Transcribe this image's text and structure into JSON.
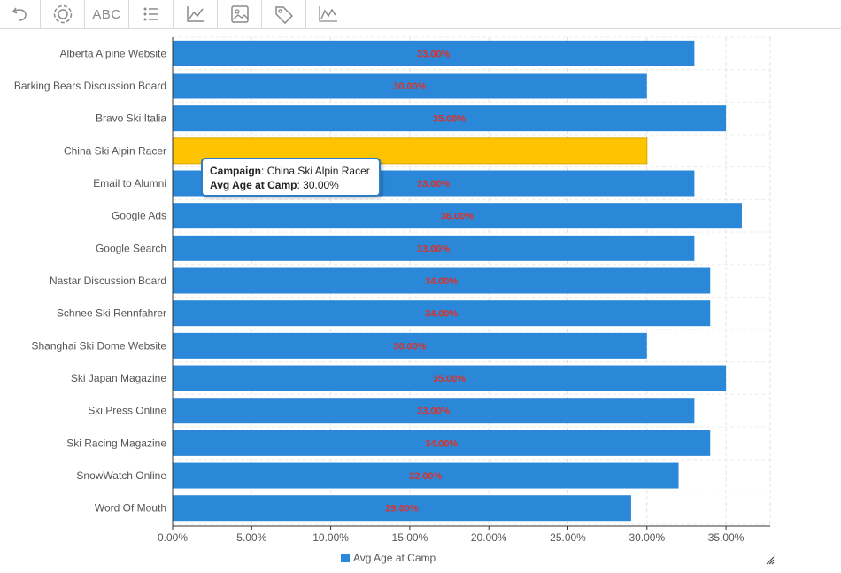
{
  "toolbar": {
    "items": [
      {
        "name": "undo-icon"
      },
      {
        "name": "settings-icon"
      },
      {
        "name": "text-label-icon",
        "label": "ABC"
      },
      {
        "name": "list-icon"
      },
      {
        "name": "axis-icon"
      },
      {
        "name": "image-icon"
      },
      {
        "name": "tag-icon"
      },
      {
        "name": "trend-line-icon"
      }
    ]
  },
  "chart_data": {
    "type": "bar",
    "orientation": "horizontal",
    "categories": [
      "Alberta Alpine Website",
      "Barking Bears Discussion Board",
      "Bravo Ski Italia",
      "China Ski Alpin Racer",
      "Email to Alumni",
      "Google Ads",
      "Google Search",
      "Nastar Discussion Board",
      "Schnee Ski Rennfahrer",
      "Shanghai Ski Dome Website",
      "Ski Japan Magazine",
      "Ski Press Online",
      "Ski Racing Magazine",
      "SnowWatch Online",
      "Word Of Mouth"
    ],
    "series": [
      {
        "name": "Avg Age at Camp",
        "values": [
          33,
          30,
          35,
          30,
          33,
          36,
          33,
          34,
          34,
          30,
          35,
          33,
          34,
          32,
          29
        ],
        "data_labels": [
          "33.00%",
          "30.00%",
          "35.00%",
          "",
          "33.00%",
          "36.00%",
          "33.00%",
          "34.00%",
          "34.00%",
          "30.00%",
          "35.00%",
          "33.00%",
          "34.00%",
          "32.00%",
          "29.00%"
        ]
      }
    ],
    "xlim": [
      0,
      38
    ],
    "x_ticks": [
      0,
      5,
      10,
      15,
      20,
      25,
      30,
      35
    ],
    "x_tick_labels": [
      "0.00%",
      "5.00%",
      "10.00%",
      "15.00%",
      "20.00%",
      "25.00%",
      "30.00%",
      "35.00%"
    ],
    "grid": true,
    "legend_position": "bottom",
    "highlighted_category": "China Ski Alpin Racer",
    "colors": {
      "bar": "#2b88d8",
      "highlight": "#ffc400",
      "highlight_border": "#d9a400",
      "data_label": "#d9322b"
    }
  },
  "tooltip": {
    "campaign_key": "Campaign",
    "campaign_value": "China Ski Alpin Racer",
    "metric_key": "Avg Age at Camp",
    "metric_value": "30.00%"
  },
  "legend": {
    "label": "Avg Age at Camp"
  }
}
